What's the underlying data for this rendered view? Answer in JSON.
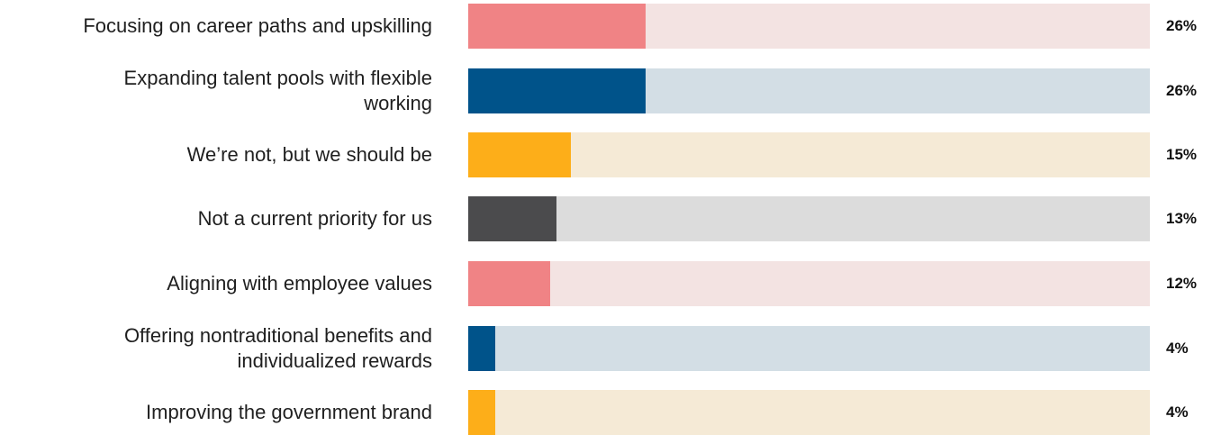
{
  "chart_data": {
    "type": "bar",
    "orientation": "horizontal",
    "title": "",
    "xlabel": "",
    "ylabel": "",
    "xlim": [
      0,
      100
    ],
    "categories": [
      "Focusing on career paths and upskilling",
      "Expanding talent pools with flexible working",
      "We’re not, but we should be",
      "Not a current priority for us",
      "Aligning with employee values",
      "Offering nontraditional benefits and individualized rewards",
      "Improving the government brand"
    ],
    "values": [
      26,
      26,
      15,
      13,
      12,
      4,
      4
    ],
    "value_labels": [
      "26%",
      "26%",
      "15%",
      "13%",
      "12%",
      "4%",
      "4%"
    ],
    "bar_colors": [
      "#F08385",
      "#00538A",
      "#FDAE19",
      "#4B4B4D",
      "#F08385",
      "#00538A",
      "#FDAE19"
    ],
    "track_colors": [
      "#F3E3E2",
      "#D3DEE5",
      "#F5EAD6",
      "#DCDCDC",
      "#F3E3E2",
      "#D3DEE5",
      "#F5EAD6"
    ],
    "label_lines": [
      [
        "Focusing on career paths and upskilling"
      ],
      [
        "Expanding talent pools with flexible",
        "working"
      ],
      [
        "We’re not, but we should be"
      ],
      [
        "Not a current priority for us"
      ],
      [
        "Aligning with employee values"
      ],
      [
        "Offering nontraditional benefits and",
        "individualized rewards"
      ],
      [
        "Improving the government brand"
      ]
    ]
  }
}
